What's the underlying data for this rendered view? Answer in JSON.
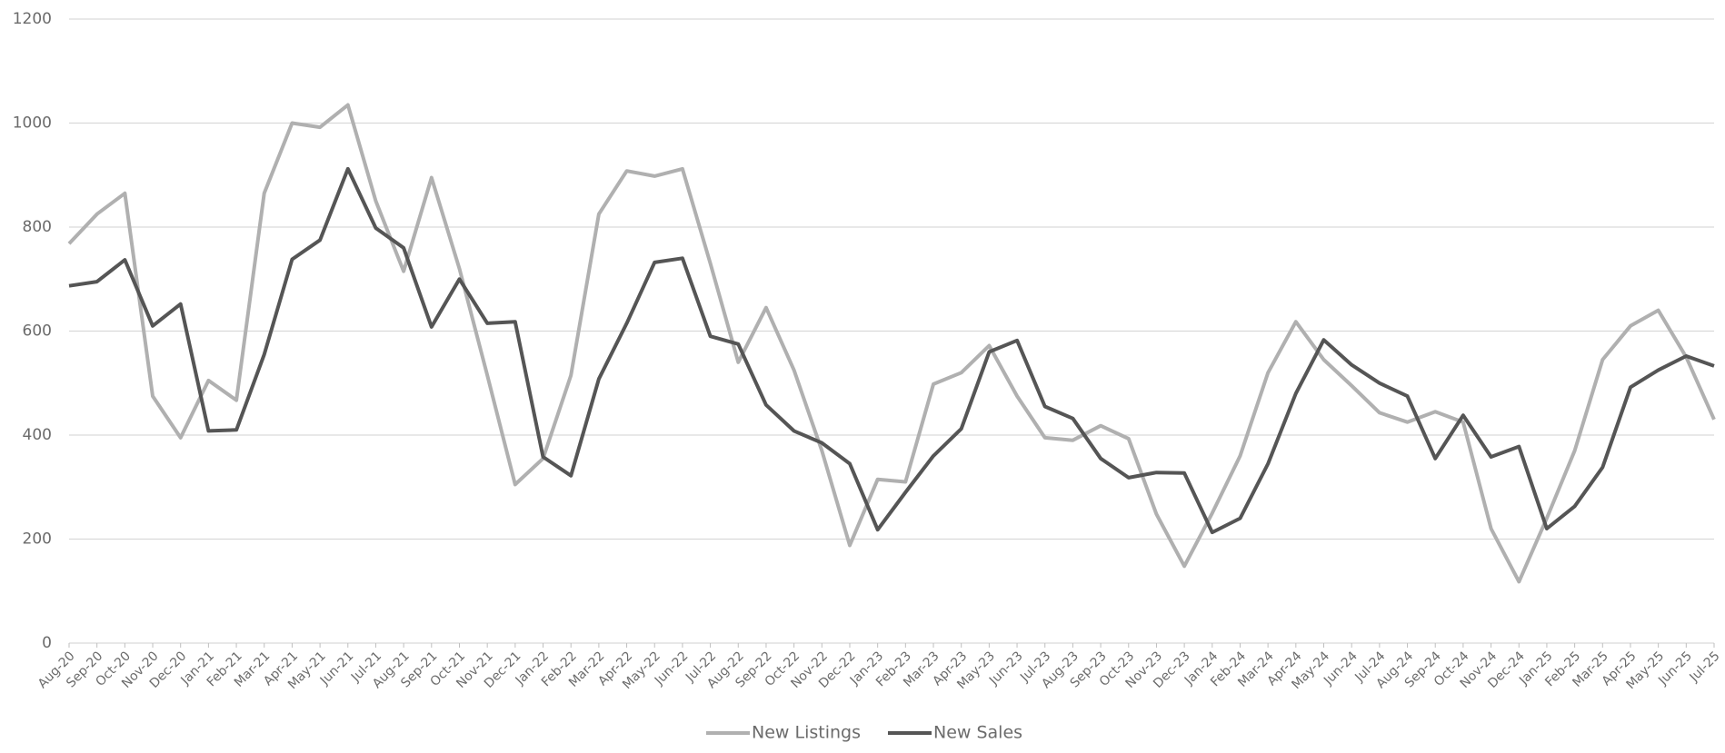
{
  "chart_data": {
    "type": "line",
    "categories": [
      "Aug-20",
      "Sep-20",
      "Oct-20",
      "Nov-20",
      "Dec-20",
      "Jan-21",
      "Feb-21",
      "Mar-21",
      "Apr-21",
      "May-21",
      "Jun-21",
      "Jul-21",
      "Aug-21",
      "Sep-21",
      "Oct-21",
      "Nov-21",
      "Dec-21",
      "Jan-22",
      "Feb-22",
      "Mar-22",
      "Apr-22",
      "May-22",
      "Jun-22",
      "Jul-22",
      "Aug-22",
      "Sep-22",
      "Oct-22",
      "Nov-22",
      "Dec-22",
      "Jan-23",
      "Feb-23",
      "Mar-23",
      "Apr-23",
      "May-23",
      "Jun-23",
      "Jul-23",
      "Aug-23",
      "Sep-23",
      "Oct-23",
      "Nov-23",
      "Dec-23",
      "Jan-24",
      "Feb-24",
      "Mar-24",
      "Apr-24",
      "May-24",
      "Jun-24",
      "Jul-24",
      "Aug-24",
      "Sep-24",
      "Oct-24",
      "Nov-24",
      "Dec-24",
      "Jan-25",
      "Feb-25",
      "Mar-25",
      "Apr-25",
      "May-25",
      "Jun-25",
      "Jul-25"
    ],
    "series": [
      {
        "name": "New Listings",
        "color": "#b0b0b0",
        "values": [
          768,
          825,
          865,
          475,
          395,
          505,
          467,
          865,
          1000,
          992,
          1035,
          850,
          715,
          895,
          720,
          515,
          305,
          355,
          515,
          825,
          908,
          898,
          912,
          730,
          540,
          645,
          525,
          370,
          188,
          315,
          310,
          498,
          520,
          572,
          475,
          395,
          390,
          418,
          393,
          248,
          148,
          250,
          360,
          520,
          618,
          545,
          495,
          443,
          425,
          445,
          425,
          220,
          118,
          240,
          370,
          545,
          610,
          640,
          550,
          430
        ]
      },
      {
        "name": "New Sales",
        "color": "#555555",
        "values": [
          687,
          695,
          737,
          610,
          652,
          408,
          410,
          555,
          738,
          775,
          912,
          798,
          760,
          608,
          700,
          615,
          618,
          358,
          322,
          508,
          615,
          732,
          740,
          590,
          575,
          458,
          408,
          385,
          345,
          218,
          290,
          360,
          412,
          560,
          582,
          455,
          432,
          355,
          318,
          328,
          327,
          213,
          240,
          345,
          480,
          583,
          535,
          500,
          475,
          355,
          438,
          358,
          378,
          220,
          263,
          338,
          492,
          525,
          552,
          533
        ]
      }
    ],
    "ylim": [
      0,
      1200
    ],
    "yticks": [
      0,
      200,
      400,
      600,
      800,
      1000,
      1200
    ],
    "grid": true,
    "legend": "bottom"
  }
}
